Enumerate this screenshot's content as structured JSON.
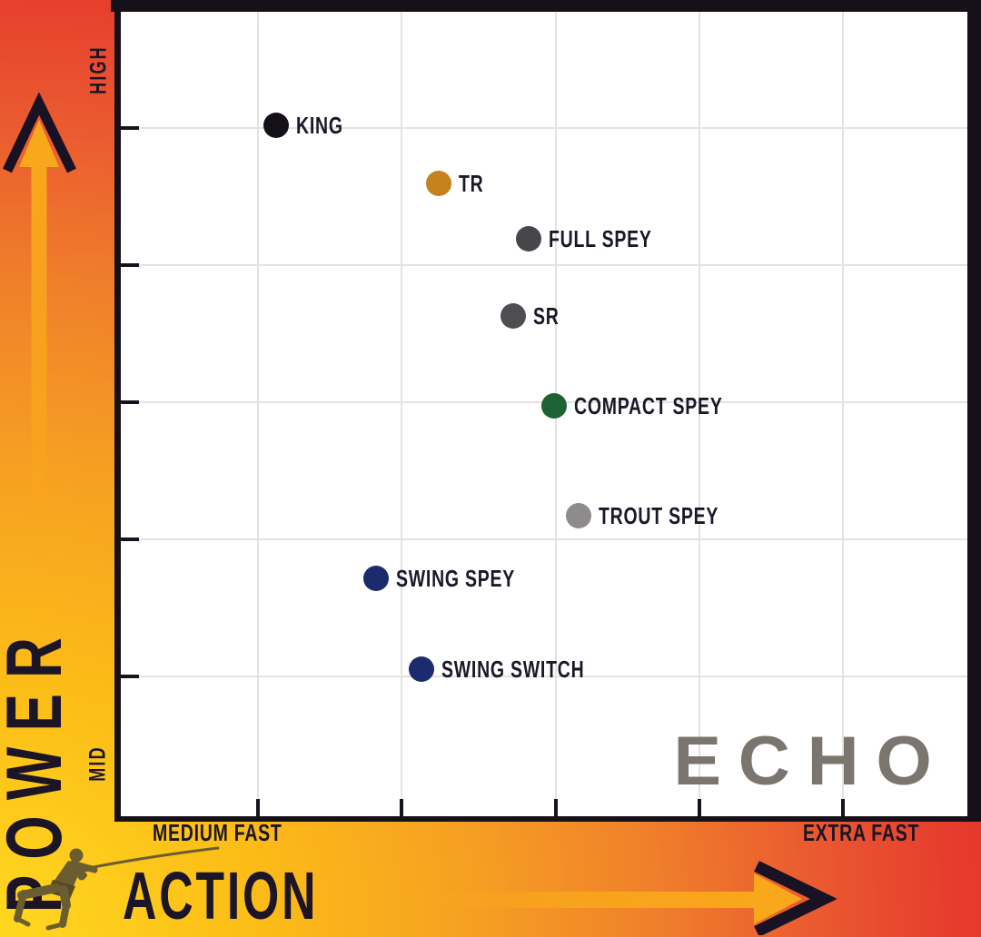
{
  "axes": {
    "y": {
      "label": "POWER",
      "high_tick": "HIGH",
      "mid_tick": "MID"
    },
    "x": {
      "label": "ACTION",
      "left_tick": "MEDIUM FAST",
      "right_tick": "EXTRA FAST"
    }
  },
  "brand": {
    "logo_text": "ECHO",
    "logo_color": "#7b756f"
  },
  "icons": {
    "power_arrow": "arrow-up-icon",
    "action_arrow": "arrow-right-icon",
    "fisherman": "fly-caster-silhouette-icon"
  },
  "colors": {
    "background_gradient": [
      "#ffd81f",
      "#f6a022",
      "#f0812a",
      "#e5322d"
    ],
    "frame_black": "#161019",
    "arrow_yellow": "#f9a71b",
    "plot_background": "#ffffff",
    "gridline": "#e3e3e3",
    "label_text": "#1c1727",
    "logo_gray": "#7b756f",
    "fisherman_olive": "#6b5d31"
  },
  "chart_data": {
    "type": "scatter",
    "title": "",
    "x_axis": {
      "label": "ACTION",
      "range_labels": [
        "MEDIUM FAST",
        "EXTRA FAST"
      ],
      "scale": "0-100 relative",
      "direction": "slower left, faster right"
    },
    "y_axis": {
      "label": "POWER",
      "range_labels": [
        "MID",
        "HIGH"
      ],
      "scale": "0-100 relative",
      "direction": "mid bottom, high top"
    },
    "legend_position": "none",
    "grid_on": true,
    "label_color": "#1c1727",
    "series": [
      {
        "name": "KING",
        "action": 18.3,
        "power": 85.9,
        "color": "#131019"
      },
      {
        "name": "TR",
        "action": 37.6,
        "power": 78.7,
        "color": "#c5811e"
      },
      {
        "name": "FULL SPEY",
        "action": 48.2,
        "power": 71.8,
        "color": "#48464a"
      },
      {
        "name": "SR",
        "action": 46.4,
        "power": 62.2,
        "color": "#504d52"
      },
      {
        "name": "COMPACT SPEY",
        "action": 51.2,
        "power": 51.0,
        "color": "#1d6233"
      },
      {
        "name": "TROUT SPEY",
        "action": 54.1,
        "power": 37.4,
        "color": "#8d8b8c"
      },
      {
        "name": "SWING SPEY",
        "action": 30.1,
        "power": 29.6,
        "color": "#1c2b6e"
      },
      {
        "name": "SWING SWITCH",
        "action": 35.5,
        "power": 18.3,
        "color": "#1c2b6e"
      }
    ],
    "grid": {
      "v_percent": [
        16.2,
        33.2,
        51.4,
        68.4,
        85.3
      ],
      "h_percent": [
        14.4,
        31.5,
        48.5,
        65.6,
        82.6
      ]
    }
  }
}
